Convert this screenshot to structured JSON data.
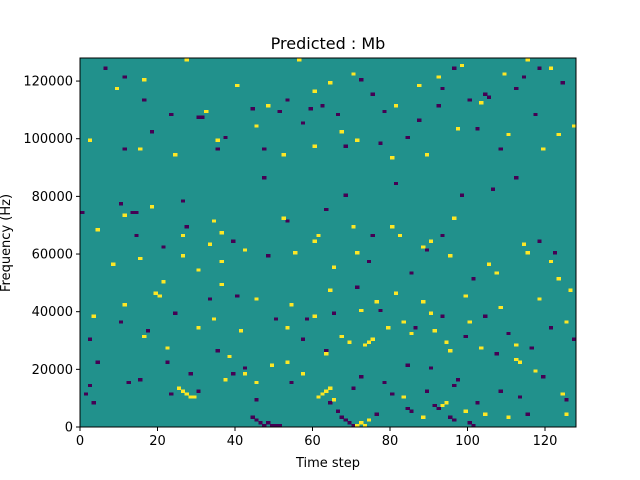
{
  "chart_data": {
    "type": "heatmap",
    "title": "Predicted : Mb",
    "xlabel": "Time step",
    "ylabel": "Frequency (Hz)",
    "xlim": [
      0,
      128
    ],
    "ylim": [
      0,
      128000
    ],
    "x_ticks": [
      0,
      20,
      40,
      60,
      80,
      100,
      120
    ],
    "y_ticks": [
      0,
      20000,
      40000,
      60000,
      80000,
      100000,
      120000
    ],
    "x_tick_labels": [
      "0",
      "20",
      "40",
      "60",
      "80",
      "100",
      "120"
    ],
    "y_tick_labels": [
      "0",
      "20000",
      "40000",
      "60000",
      "80000",
      "100000",
      "120000"
    ],
    "grid": false,
    "grid_size": [
      128,
      128
    ],
    "colormap": {
      "low": "#440154",
      "mid": "#21918c",
      "high": "#fde725"
    },
    "background_value": "mid",
    "cells_low": [
      [
        6,
        124
      ],
      [
        11,
        121
      ],
      [
        16,
        113
      ],
      [
        23,
        108
      ],
      [
        31,
        107
      ],
      [
        37,
        100
      ],
      [
        47,
        96
      ],
      [
        53,
        113
      ],
      [
        59,
        110
      ],
      [
        66,
        108
      ],
      [
        72,
        120
      ],
      [
        75,
        115
      ],
      [
        78,
        109
      ],
      [
        84,
        100
      ],
      [
        93,
        117
      ],
      [
        96,
        124
      ],
      [
        100,
        113
      ],
      [
        104,
        115
      ],
      [
        105,
        114
      ],
      [
        112,
        117
      ],
      [
        114,
        121
      ],
      [
        118,
        124
      ],
      [
        124,
        119
      ],
      [
        11,
        96
      ],
      [
        18,
        102
      ],
      [
        30,
        107
      ],
      [
        35,
        96
      ],
      [
        44,
        110
      ],
      [
        51,
        109
      ],
      [
        57,
        105
      ],
      [
        62,
        111
      ],
      [
        68,
        97
      ],
      [
        77,
        98
      ],
      [
        87,
        106
      ],
      [
        92,
        111
      ],
      [
        102,
        103
      ],
      [
        108,
        96
      ],
      [
        117,
        108
      ],
      [
        0,
        74
      ],
      [
        10,
        77
      ],
      [
        14,
        66
      ],
      [
        21,
        62
      ],
      [
        27,
        69
      ],
      [
        39,
        64
      ],
      [
        47,
        86
      ],
      [
        53,
        71
      ],
      [
        63,
        75
      ],
      [
        68,
        80
      ],
      [
        75,
        66
      ],
      [
        81,
        84
      ],
      [
        89,
        61
      ],
      [
        93,
        66
      ],
      [
        98,
        80
      ],
      [
        106,
        82
      ],
      [
        112,
        86
      ],
      [
        118,
        64
      ],
      [
        122,
        60
      ],
      [
        13,
        74
      ],
      [
        14,
        74
      ],
      [
        26,
        78
      ],
      [
        48,
        59
      ],
      [
        74,
        57
      ],
      [
        85,
        53
      ],
      [
        101,
        51
      ],
      [
        2,
        30
      ],
      [
        4,
        22
      ],
      [
        12,
        15
      ],
      [
        23,
        11
      ],
      [
        30,
        12
      ],
      [
        39,
        18
      ],
      [
        45,
        9
      ],
      [
        54,
        15
      ],
      [
        64,
        8
      ],
      [
        72,
        17
      ],
      [
        78,
        15
      ],
      [
        84,
        21
      ],
      [
        90,
        20
      ],
      [
        96,
        14
      ],
      [
        102,
        8
      ],
      [
        108,
        12
      ],
      [
        113,
        10
      ],
      [
        119,
        17
      ],
      [
        125,
        9
      ],
      [
        44,
        3
      ],
      [
        45,
        2
      ],
      [
        46,
        1
      ],
      [
        47,
        0
      ],
      [
        48,
        1
      ],
      [
        49,
        0
      ],
      [
        50,
        0
      ],
      [
        51,
        0
      ],
      [
        66,
        5
      ],
      [
        67,
        3
      ],
      [
        68,
        2
      ],
      [
        69,
        1
      ],
      [
        70,
        0
      ],
      [
        76,
        4
      ],
      [
        84,
        6
      ],
      [
        85,
        5
      ],
      [
        91,
        7
      ],
      [
        92,
        6
      ],
      [
        95,
        3
      ],
      [
        96,
        2
      ],
      [
        100,
        1
      ],
      [
        101,
        0
      ],
      [
        10,
        36
      ],
      [
        17,
        33
      ],
      [
        24,
        39
      ],
      [
        33,
        44
      ],
      [
        40,
        45
      ],
      [
        50,
        37
      ],
      [
        58,
        37
      ],
      [
        65,
        39
      ],
      [
        71,
        48
      ],
      [
        77,
        40
      ],
      [
        86,
        34
      ],
      [
        93,
        38
      ],
      [
        99,
        31
      ],
      [
        104,
        38
      ],
      [
        110,
        32
      ],
      [
        116,
        27
      ],
      [
        121,
        34
      ],
      [
        127,
        30
      ],
      [
        1,
        11
      ],
      [
        2,
        14
      ],
      [
        3,
        8
      ],
      [
        15,
        16
      ],
      [
        22,
        22
      ],
      [
        28,
        18
      ],
      [
        35,
        26
      ],
      [
        42,
        20
      ],
      [
        57,
        30
      ],
      [
        63,
        26
      ],
      [
        70,
        13
      ],
      [
        80,
        11
      ],
      [
        89,
        12
      ],
      [
        97,
        16
      ],
      [
        107,
        25
      ],
      [
        115,
        4
      ]
    ],
    "cells_high": [
      [
        9,
        117
      ],
      [
        16,
        120
      ],
      [
        27,
        127
      ],
      [
        32,
        109
      ],
      [
        40,
        118
      ],
      [
        48,
        111
      ],
      [
        56,
        127
      ],
      [
        60,
        116
      ],
      [
        64,
        119
      ],
      [
        70,
        122
      ],
      [
        81,
        111
      ],
      [
        87,
        118
      ],
      [
        92,
        121
      ],
      [
        98,
        125
      ],
      [
        103,
        112
      ],
      [
        109,
        122
      ],
      [
        115,
        127
      ],
      [
        121,
        124
      ],
      [
        127,
        104
      ],
      [
        2,
        99
      ],
      [
        15,
        96
      ],
      [
        24,
        94
      ],
      [
        35,
        99
      ],
      [
        45,
        104
      ],
      [
        52,
        94
      ],
      [
        60,
        97
      ],
      [
        67,
        102
      ],
      [
        71,
        99
      ],
      [
        80,
        93
      ],
      [
        89,
        94
      ],
      [
        97,
        103
      ],
      [
        110,
        101
      ],
      [
        119,
        96
      ],
      [
        123,
        101
      ],
      [
        4,
        68
      ],
      [
        11,
        73
      ],
      [
        18,
        76
      ],
      [
        26,
        66
      ],
      [
        33,
        63
      ],
      [
        34,
        71
      ],
      [
        36,
        67
      ],
      [
        42,
        61
      ],
      [
        52,
        72
      ],
      [
        60,
        64
      ],
      [
        65,
        55
      ],
      [
        71,
        60
      ],
      [
        80,
        69
      ],
      [
        90,
        64
      ],
      [
        96,
        72
      ],
      [
        105,
        56
      ],
      [
        114,
        63
      ],
      [
        123,
        51
      ],
      [
        8,
        56
      ],
      [
        15,
        58
      ],
      [
        21,
        50
      ],
      [
        30,
        54
      ],
      [
        36,
        49
      ],
      [
        45,
        44
      ],
      [
        54,
        42
      ],
      [
        64,
        47
      ],
      [
        72,
        40
      ],
      [
        81,
        46
      ],
      [
        90,
        39
      ],
      [
        99,
        45
      ],
      [
        108,
        41
      ],
      [
        118,
        44
      ],
      [
        125,
        36
      ],
      [
        16,
        31
      ],
      [
        22,
        27
      ],
      [
        30,
        34
      ],
      [
        38,
        24
      ],
      [
        45,
        15
      ],
      [
        49,
        21
      ],
      [
        57,
        18
      ],
      [
        63,
        25
      ],
      [
        69,
        29
      ],
      [
        73,
        28
      ],
      [
        74,
        29
      ],
      [
        75,
        30
      ],
      [
        79,
        34
      ],
      [
        83,
        36
      ],
      [
        88,
        43
      ],
      [
        91,
        33
      ],
      [
        95,
        26
      ],
      [
        103,
        27
      ],
      [
        112,
        23
      ],
      [
        113,
        22
      ],
      [
        117,
        19
      ],
      [
        124,
        11
      ],
      [
        25,
        13
      ],
      [
        26,
        12
      ],
      [
        27,
        11
      ],
      [
        28,
        10
      ],
      [
        29,
        10
      ],
      [
        37,
        16
      ],
      [
        42,
        18
      ],
      [
        53,
        22
      ],
      [
        61,
        10
      ],
      [
        62,
        11
      ],
      [
        63,
        12
      ],
      [
        64,
        13
      ],
      [
        65,
        9
      ],
      [
        71,
        0
      ],
      [
        72,
        1
      ],
      [
        73,
        0
      ],
      [
        74,
        2
      ],
      [
        83,
        10
      ],
      [
        88,
        3
      ],
      [
        93,
        7
      ],
      [
        94,
        8
      ],
      [
        99,
        5
      ],
      [
        104,
        4
      ],
      [
        110,
        3
      ],
      [
        125,
        4
      ],
      [
        19,
        46
      ],
      [
        20,
        45
      ],
      [
        34,
        37
      ],
      [
        41,
        33
      ],
      [
        53,
        34
      ],
      [
        60,
        38
      ],
      [
        67,
        31
      ],
      [
        76,
        43
      ],
      [
        85,
        32
      ],
      [
        94,
        29
      ],
      [
        100,
        36
      ],
      [
        112,
        28
      ],
      [
        3,
        38
      ],
      [
        11,
        42
      ],
      [
        26,
        59
      ],
      [
        36,
        57
      ],
      [
        55,
        60
      ],
      [
        61,
        66
      ],
      [
        70,
        69
      ],
      [
        82,
        66
      ],
      [
        88,
        62
      ],
      [
        95,
        59
      ],
      [
        107,
        53
      ],
      [
        115,
        60
      ],
      [
        121,
        57
      ],
      [
        126,
        47
      ]
    ]
  }
}
